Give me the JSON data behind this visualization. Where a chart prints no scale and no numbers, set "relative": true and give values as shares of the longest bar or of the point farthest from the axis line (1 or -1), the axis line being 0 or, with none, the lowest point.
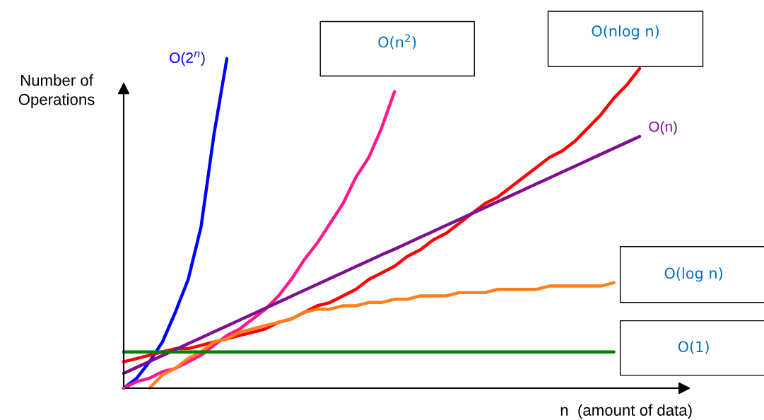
{
  "chart_data": {
    "type": "line",
    "relative": true,
    "xlabel": "n  (amount of data)",
    "ylabel": "Number of\nOperations",
    "legend": false,
    "marker": "none",
    "line_style": "solid",
    "categories": [
      null,
      null,
      null,
      null,
      null,
      null,
      null,
      null,
      null,
      null,
      null,
      null,
      null,
      null,
      null,
      null,
      null,
      null,
      null,
      null,
      null,
      null,
      null,
      null,
      null,
      null,
      null,
      null,
      null,
      null,
      null,
      null,
      null,
      null,
      null,
      null,
      null,
      null,
      null,
      null,
      null
    ],
    "annotations": [
      "O(n$^{2}$)",
      "O(nlog n)",
      "O(log n)",
      "O(1)"
    ],
    "series": [
      {
        "name": "O(2$^{n}$)",
        "color": "#0000ff",
        "values": [
          0,
          0.03,
          0.08,
          0.14,
          0.23,
          0.33,
          0.49,
          0.77,
          1.0,
          null,
          null,
          null,
          null,
          null,
          null,
          null,
          null,
          null,
          null,
          null,
          null,
          null,
          null,
          null,
          null,
          null,
          null,
          null,
          null,
          null,
          null,
          null,
          null,
          null,
          null,
          null,
          null,
          null,
          null,
          null,
          null
        ]
      },
      {
        "color": "#ff1a8c",
        "values": [
          0,
          0.02,
          0.03,
          0.05,
          0.06,
          0.08,
          0.1,
          0.13,
          0.16,
          0.18,
          0.21,
          0.24,
          0.28,
          0.33,
          0.39,
          0.44,
          0.5,
          0.56,
          0.64,
          0.7,
          0.79,
          0.9,
          null,
          null,
          null,
          null,
          null,
          null,
          null,
          null,
          null,
          null,
          null,
          null,
          null,
          null,
          null,
          null,
          null,
          null,
          null
        ]
      },
      {
        "color": "#ff0000",
        "values": [
          0.08,
          0.09,
          0.1,
          0.11,
          0.12,
          0.12,
          0.13,
          0.14,
          0.15,
          0.16,
          0.17,
          0.18,
          0.2,
          0.21,
          0.23,
          0.25,
          0.26,
          0.28,
          0.3,
          0.33,
          0.35,
          0.37,
          0.4,
          0.42,
          0.45,
          0.47,
          0.5,
          0.53,
          0.56,
          0.58,
          0.61,
          0.64,
          0.67,
          0.7,
          0.72,
          0.75,
          0.79,
          0.83,
          0.88,
          0.92,
          0.97
        ]
      },
      {
        "name": "O(n)",
        "color": "#7f0f8f",
        "values": [
          0.045,
          0.063,
          0.081,
          0.099,
          0.117,
          0.135,
          0.153,
          0.171,
          0.189,
          0.207,
          0.225,
          0.243,
          0.261,
          0.279,
          0.297,
          0.315,
          0.333,
          0.351,
          0.369,
          0.387,
          0.405,
          0.422,
          0.44,
          0.458,
          0.476,
          0.494,
          0.512,
          0.53,
          0.548,
          0.566,
          0.584,
          0.602,
          0.62,
          0.638,
          0.656,
          0.674,
          0.692,
          0.71,
          0.728,
          0.746,
          0.764
        ]
      },
      {
        "color": "#ff7f1a",
        "values": [
          null,
          null,
          0,
          0.04,
          0.06,
          0.09,
          0.11,
          0.14,
          0.15,
          0.17,
          0.18,
          0.19,
          0.2,
          0.21,
          0.23,
          0.24,
          0.24,
          0.25,
          0.25,
          0.26,
          0.26,
          0.27,
          0.27,
          0.28,
          0.28,
          0.28,
          0.29,
          0.29,
          0.29,
          0.3,
          0.3,
          0.3,
          0.3,
          0.31,
          0.31,
          0.31,
          0.31,
          0.31,
          0.32,
          null,
          null
        ]
      },
      {
        "color": "#007f00",
        "values": [
          0.11,
          0.11,
          0.11,
          0.11,
          0.11,
          0.11,
          0.11,
          0.11,
          0.11,
          0.11,
          0.11,
          0.11,
          0.11,
          0.11,
          0.11,
          0.11,
          0.11,
          0.11,
          0.11,
          0.11,
          0.11,
          0.11,
          0.11,
          0.11,
          0.11,
          0.11,
          0.11,
          0.11,
          0.11,
          0.11,
          0.11,
          0.11,
          0.11,
          0.11,
          0.11,
          0.11,
          0.11,
          0.11,
          0.11,
          null,
          null
        ]
      }
    ]
  }
}
